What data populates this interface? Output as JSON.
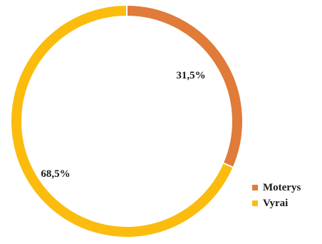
{
  "chart_data": {
    "type": "pie",
    "donut": true,
    "categories": [
      "Moterys",
      "Vyrai"
    ],
    "values": [
      31.5,
      68.5
    ],
    "labels": [
      "31,5%",
      "68,5%"
    ],
    "colors": [
      "#E07B39",
      "#FBBC0E"
    ],
    "legend_position": "bottom-right"
  },
  "legend": {
    "items": [
      {
        "label": "Moterys",
        "color": "#E07B39"
      },
      {
        "label": "Vyrai",
        "color": "#FBBC0E"
      }
    ]
  }
}
